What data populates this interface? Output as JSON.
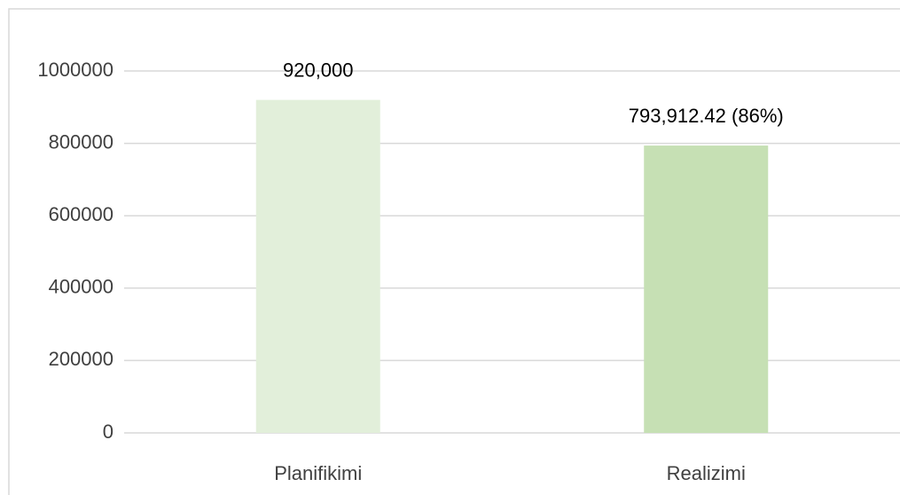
{
  "chart_data": {
    "type": "bar",
    "categories": [
      "Planifikimi",
      "Realizimi"
    ],
    "values": [
      920000,
      793912.42
    ],
    "value_labels": [
      "920,000",
      "793,912.42 (86%)"
    ],
    "colors": [
      "#e2efda",
      "#c6e0b4"
    ],
    "ylim": [
      0,
      1000000
    ],
    "yticks": [
      0,
      200000,
      400000,
      600000,
      800000,
      1000000
    ],
    "grid": true
  }
}
